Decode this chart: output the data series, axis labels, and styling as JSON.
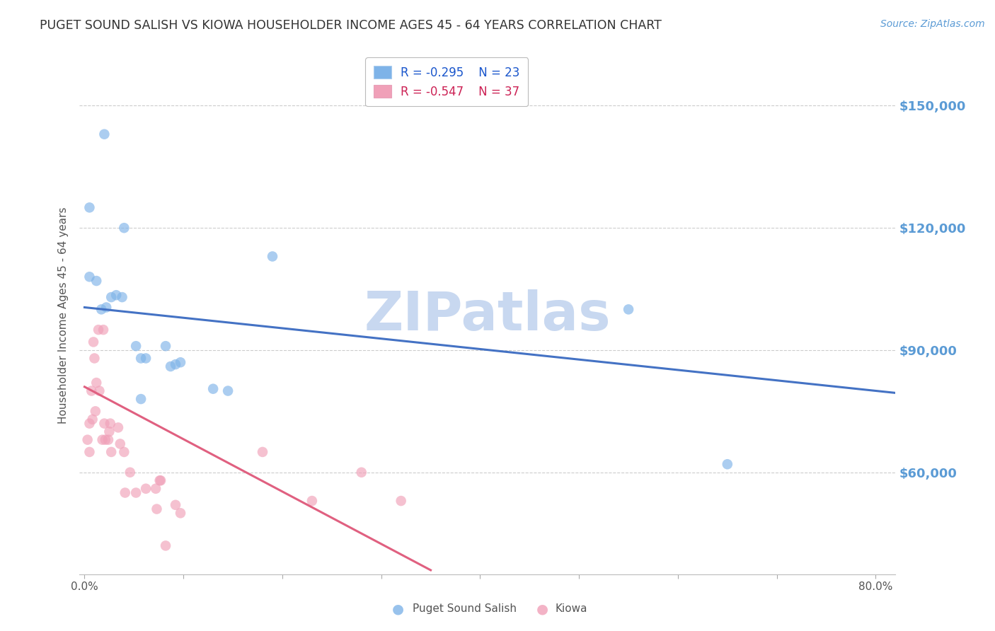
{
  "title": "PUGET SOUND SALISH VS KIOWA HOUSEHOLDER INCOME AGES 45 - 64 YEARS CORRELATION CHART",
  "source": "Source: ZipAtlas.com",
  "ylabel": "Householder Income Ages 45 - 64 years",
  "xlim": [
    -0.005,
    0.82
  ],
  "ylim": [
    35000,
    162000
  ],
  "yticks": [
    60000,
    90000,
    120000,
    150000
  ],
  "xticks": [
    0.0,
    0.1,
    0.2,
    0.3,
    0.4,
    0.5,
    0.6,
    0.7,
    0.8
  ],
  "xtick_labels": [
    "0.0%",
    "",
    "",
    "",
    "",
    "",
    "",
    "",
    "80.0%"
  ],
  "ytick_right_labels": [
    "$60,000",
    "$90,000",
    "$120,000",
    "$150,000"
  ],
  "background_color": "#ffffff",
  "grid_color": "#cccccc",
  "watermark": "ZIPatlas",
  "watermark_color": "#c8d8f0",
  "right_ytick_color": "#5b9bd5",
  "blue_color": "#7eb3e8",
  "pink_color": "#f0a0b8",
  "blue_line_color": "#4472c4",
  "pink_line_color": "#e06080",
  "title_color": "#333333",
  "title_fontsize": 12.5,
  "axis_label_color": "#555555",
  "marker_size": 110,
  "blue_R": -0.295,
  "blue_N": 23,
  "pink_R": -0.547,
  "pink_N": 37,
  "blue_label": "Puget Sound Salish",
  "pink_label": "Kiowa",
  "blue_points_x": [
    0.005,
    0.02,
    0.04,
    0.19,
    0.005,
    0.012,
    0.017,
    0.022,
    0.027,
    0.032,
    0.038,
    0.052,
    0.062,
    0.057,
    0.082,
    0.087,
    0.092,
    0.097,
    0.13,
    0.145,
    0.55,
    0.65,
    0.057
  ],
  "blue_points_y": [
    125000,
    143000,
    120000,
    113000,
    108000,
    107000,
    100000,
    100500,
    103000,
    103500,
    103000,
    91000,
    88000,
    88000,
    91000,
    86000,
    86500,
    87000,
    80500,
    80000,
    100000,
    62000,
    78000
  ],
  "pink_points_x": [
    0.003,
    0.005,
    0.005,
    0.007,
    0.008,
    0.009,
    0.01,
    0.011,
    0.012,
    0.014,
    0.015,
    0.018,
    0.019,
    0.02,
    0.021,
    0.024,
    0.025,
    0.026,
    0.027,
    0.034,
    0.036,
    0.04,
    0.041,
    0.046,
    0.052,
    0.062,
    0.072,
    0.073,
    0.076,
    0.077,
    0.082,
    0.092,
    0.097,
    0.18,
    0.23,
    0.28,
    0.32
  ],
  "pink_points_y": [
    68000,
    72000,
    65000,
    80000,
    73000,
    92000,
    88000,
    75000,
    82000,
    95000,
    80000,
    68000,
    95000,
    72000,
    68000,
    68000,
    70000,
    72000,
    65000,
    71000,
    67000,
    65000,
    55000,
    60000,
    55000,
    56000,
    56000,
    51000,
    58000,
    58000,
    42000,
    52000,
    50000,
    65000,
    53000,
    60000,
    53000
  ],
  "blue_line_x": [
    0.0,
    0.82
  ],
  "blue_line_y": [
    100500,
    79500
  ],
  "pink_line_x": [
    0.0,
    0.35
  ],
  "pink_line_y": [
    81000,
    36000
  ]
}
